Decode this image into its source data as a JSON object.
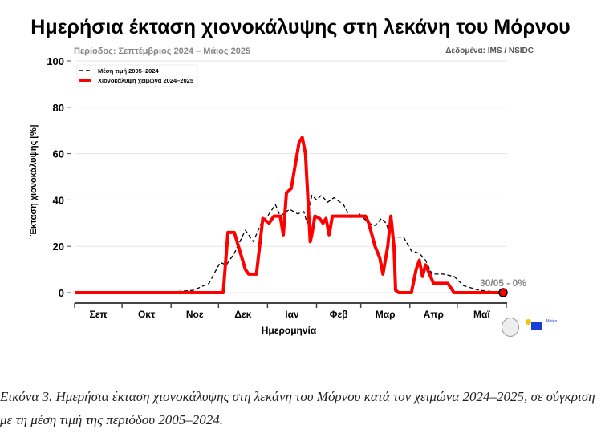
{
  "title": "Ημερήσια έκταση χιονοκάλυψης στη λεκάνη του Μόρνου",
  "subtitle": "Περίοδος: Σεπτέμβριος 2024 – Μάιος 2025",
  "source": "Δεδομένα: IMS / NSIDC",
  "caption": "Εικόνα 3. Ημερήσια έκταση χιονοκάλυψης στη λεκάνη του Μόρνου κατά τον χειμώνα 2024–2025, σε σύγκριση με τη μέση τιμή της περιόδου 2005–2024.",
  "logos": {
    "left": "university-seal",
    "right": "Meteo"
  },
  "chart_data": {
    "type": "line",
    "xlabel": "Ημερομηνία",
    "ylabel": "Έκταση χιονοκάλυψης [%]",
    "xlim": [
      "2024-09-01",
      "2025-05-30"
    ],
    "ylim": [
      0,
      100
    ],
    "yticks": [
      0,
      20,
      40,
      60,
      80,
      100
    ],
    "xticklabels": [
      "Σεπ",
      "Οκτ",
      "Νοε",
      "Δεκ",
      "Ιαν",
      "Φεβ",
      "Μαρ",
      "Απρ",
      "Μαϊ"
    ],
    "grid": "horizontal",
    "legend": "top-left",
    "annotation": "30/05 - 0%",
    "series": [
      {
        "name": "Μέση τιμή 2005–2024",
        "color": "#000000",
        "style": "dashed",
        "points": [
          [
            "2024-09-01",
            0
          ],
          [
            "2024-10-20",
            0
          ],
          [
            "2024-11-05",
            0.5
          ],
          [
            "2024-11-15",
            1
          ],
          [
            "2024-11-25",
            4
          ],
          [
            "2024-12-02",
            13
          ],
          [
            "2024-12-06",
            12
          ],
          [
            "2024-12-11",
            17
          ],
          [
            "2024-12-18",
            27
          ],
          [
            "2024-12-23",
            22
          ],
          [
            "2024-12-28",
            30
          ],
          [
            "2025-01-01",
            33
          ],
          [
            "2025-01-06",
            38
          ],
          [
            "2025-01-09",
            33
          ],
          [
            "2025-01-15",
            36
          ],
          [
            "2025-01-20",
            34
          ],
          [
            "2025-01-24",
            35
          ],
          [
            "2025-01-26",
            30
          ],
          [
            "2025-01-29",
            42
          ],
          [
            "2025-02-01",
            40
          ],
          [
            "2025-02-04",
            42
          ],
          [
            "2025-02-08",
            39
          ],
          [
            "2025-02-12",
            41
          ],
          [
            "2025-02-18",
            38
          ],
          [
            "2025-02-23",
            32
          ],
          [
            "2025-02-28",
            34
          ],
          [
            "2025-03-06",
            30
          ],
          [
            "2025-03-10",
            29
          ],
          [
            "2025-03-14",
            32
          ],
          [
            "2025-03-17",
            30
          ],
          [
            "2025-03-20",
            24
          ],
          [
            "2025-03-28",
            24
          ],
          [
            "2025-04-02",
            18
          ],
          [
            "2025-04-07",
            17
          ],
          [
            "2025-04-11",
            14
          ],
          [
            "2025-04-15",
            8
          ],
          [
            "2025-04-22",
            8
          ],
          [
            "2025-04-29",
            7
          ],
          [
            "2025-05-05",
            3
          ],
          [
            "2025-05-15",
            1
          ],
          [
            "2025-05-30",
            0
          ]
        ]
      },
      {
        "name": "Χιονοκάλυψη χειμώνα 2024–2025",
        "color": "#ff0000",
        "style": "solid",
        "points": [
          [
            "2024-09-01",
            0
          ],
          [
            "2024-12-04",
            0
          ],
          [
            "2024-12-07",
            26
          ],
          [
            "2024-12-11",
            26
          ],
          [
            "2024-12-18",
            10
          ],
          [
            "2024-12-20",
            8
          ],
          [
            "2024-12-25",
            8
          ],
          [
            "2024-12-29",
            32
          ],
          [
            "2025-01-02",
            30
          ],
          [
            "2025-01-05",
            33
          ],
          [
            "2025-01-09",
            33
          ],
          [
            "2025-01-11",
            25
          ],
          [
            "2025-01-13",
            43
          ],
          [
            "2025-01-16",
            45
          ],
          [
            "2025-01-21",
            65
          ],
          [
            "2025-01-23",
            67
          ],
          [
            "2025-01-25",
            60
          ],
          [
            "2025-01-28",
            22
          ],
          [
            "2025-01-29",
            25
          ],
          [
            "2025-01-31",
            33
          ],
          [
            "2025-02-03",
            32
          ],
          [
            "2025-02-05",
            30
          ],
          [
            "2025-02-07",
            32
          ],
          [
            "2025-02-09",
            25
          ],
          [
            "2025-02-11",
            33
          ],
          [
            "2025-03-04",
            33
          ],
          [
            "2025-03-06",
            30
          ],
          [
            "2025-03-10",
            20
          ],
          [
            "2025-03-13",
            15
          ],
          [
            "2025-03-15",
            8
          ],
          [
            "2025-03-18",
            20
          ],
          [
            "2025-03-20",
            33
          ],
          [
            "2025-03-22",
            20
          ],
          [
            "2025-03-23",
            1
          ],
          [
            "2025-03-25",
            0
          ],
          [
            "2025-04-02",
            0
          ],
          [
            "2025-04-05",
            10
          ],
          [
            "2025-04-07",
            14
          ],
          [
            "2025-04-09",
            7
          ],
          [
            "2025-04-11",
            12
          ],
          [
            "2025-04-16",
            4
          ],
          [
            "2025-04-25",
            4
          ],
          [
            "2025-04-29",
            0
          ],
          [
            "2025-05-30",
            0
          ]
        ]
      }
    ]
  }
}
